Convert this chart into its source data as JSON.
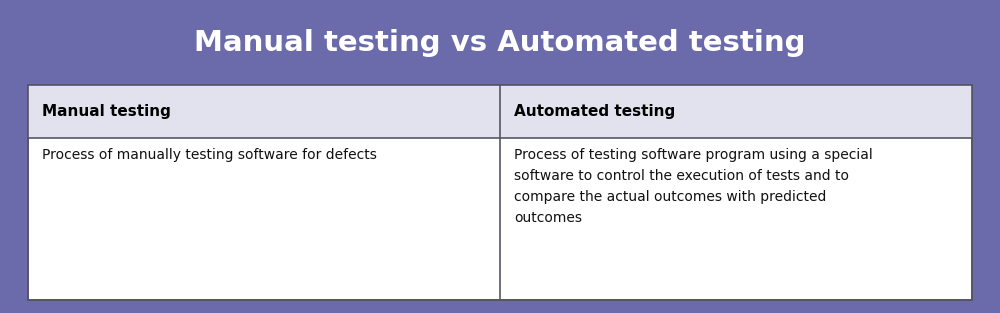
{
  "title": "Manual testing vs Automated testing",
  "title_color": "#ffffff",
  "title_fontsize": 21,
  "background_color": "#6b6bab",
  "table_bg_color": "#ffffff",
  "header_bg_color": "#e2e2ee",
  "header_text_color": "#000000",
  "header_fontsize": 11,
  "body_text_color": "#111111",
  "body_fontsize": 10,
  "border_color": "#555566",
  "col1_header": "Manual testing",
  "col2_header": "Automated testing",
  "col1_body": "Process of manually testing software for defects",
  "col2_body": "Process of testing software program using a special\nsoftware to control the execution of tests and to\ncompare the actual outcomes with predicted\noutcomes",
  "fig_width": 10.0,
  "fig_height": 3.13
}
